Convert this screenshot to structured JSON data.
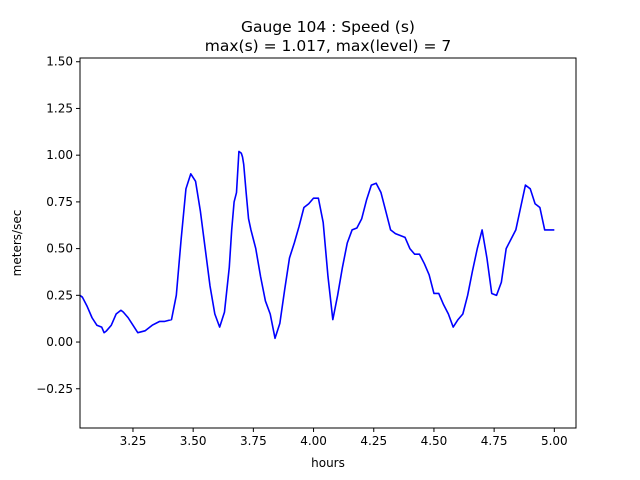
{
  "chart_data": {
    "type": "line",
    "title_line1": "Gauge 104 : Speed (s)",
    "title_line2": "max(s) =   1.017,    max(level) = 7",
    "xlabel": "hours",
    "ylabel": "meters/sec",
    "xlim": [
      3.03,
      5.09
    ],
    "ylim": [
      -0.46,
      1.52
    ],
    "xticks": [
      3.25,
      3.5,
      3.75,
      4.0,
      4.25,
      4.5,
      4.75,
      5.0
    ],
    "xtick_labels": [
      "3.25",
      "3.50",
      "3.75",
      "4.00",
      "4.25",
      "4.50",
      "4.75",
      "5.00"
    ],
    "yticks": [
      -0.25,
      0.0,
      0.25,
      0.5,
      0.75,
      1.0,
      1.25,
      1.5
    ],
    "ytick_labels": [
      "−0.25",
      "0.00",
      "0.25",
      "0.50",
      "0.75",
      "1.00",
      "1.25",
      "1.50"
    ],
    "grid": false,
    "series": [
      {
        "color": "#0000ff",
        "x": [
          3.03,
          3.04,
          3.06,
          3.08,
          3.1,
          3.12,
          3.13,
          3.14,
          3.16,
          3.18,
          3.2,
          3.21,
          3.23,
          3.25,
          3.27,
          3.3,
          3.33,
          3.36,
          3.38,
          3.41,
          3.43,
          3.45,
          3.47,
          3.49,
          3.51,
          3.53,
          3.55,
          3.57,
          3.59,
          3.61,
          3.63,
          3.65,
          3.66,
          3.67,
          3.68,
          3.69,
          3.7,
          3.705,
          3.71,
          3.72,
          3.73,
          3.74,
          3.75,
          3.76,
          3.78,
          3.8,
          3.82,
          3.84,
          3.86,
          3.88,
          3.9,
          3.92,
          3.94,
          3.96,
          3.98,
          4.0,
          4.02,
          4.04,
          4.06,
          4.08,
          4.1,
          4.12,
          4.14,
          4.16,
          4.18,
          4.2,
          4.22,
          4.24,
          4.26,
          4.28,
          4.3,
          4.32,
          4.34,
          4.36,
          4.38,
          4.4,
          4.42,
          4.44,
          4.46,
          4.48,
          4.5,
          4.52,
          4.54,
          4.56,
          4.58,
          4.6,
          4.62,
          4.64,
          4.66,
          4.68,
          4.7,
          4.72,
          4.74,
          4.76,
          4.78,
          4.8,
          4.82,
          4.84,
          4.86,
          4.88,
          4.9,
          4.92,
          4.94,
          4.96,
          4.98,
          5.0
        ],
        "y": [
          0.25,
          0.24,
          0.19,
          0.13,
          0.09,
          0.08,
          0.05,
          0.06,
          0.09,
          0.15,
          0.17,
          0.16,
          0.13,
          0.09,
          0.05,
          0.06,
          0.09,
          0.11,
          0.11,
          0.12,
          0.25,
          0.55,
          0.82,
          0.9,
          0.86,
          0.7,
          0.5,
          0.3,
          0.15,
          0.08,
          0.16,
          0.4,
          0.6,
          0.75,
          0.8,
          1.02,
          1.01,
          0.99,
          0.95,
          0.8,
          0.66,
          0.6,
          0.55,
          0.5,
          0.35,
          0.22,
          0.15,
          0.02,
          0.1,
          0.28,
          0.45,
          0.53,
          0.62,
          0.72,
          0.74,
          0.77,
          0.77,
          0.64,
          0.35,
          0.12,
          0.25,
          0.4,
          0.53,
          0.6,
          0.61,
          0.66,
          0.76,
          0.84,
          0.85,
          0.8,
          0.7,
          0.6,
          0.58,
          0.57,
          0.56,
          0.5,
          0.47,
          0.47,
          0.42,
          0.36,
          0.26,
          0.26,
          0.2,
          0.15,
          0.08,
          0.12,
          0.15,
          0.25,
          0.38,
          0.5,
          0.6,
          0.45,
          0.26,
          0.25,
          0.32,
          0.5,
          0.55,
          0.6,
          0.72,
          0.84,
          0.82,
          0.74,
          0.72,
          0.6,
          0.6,
          0.6
        ]
      }
    ]
  }
}
